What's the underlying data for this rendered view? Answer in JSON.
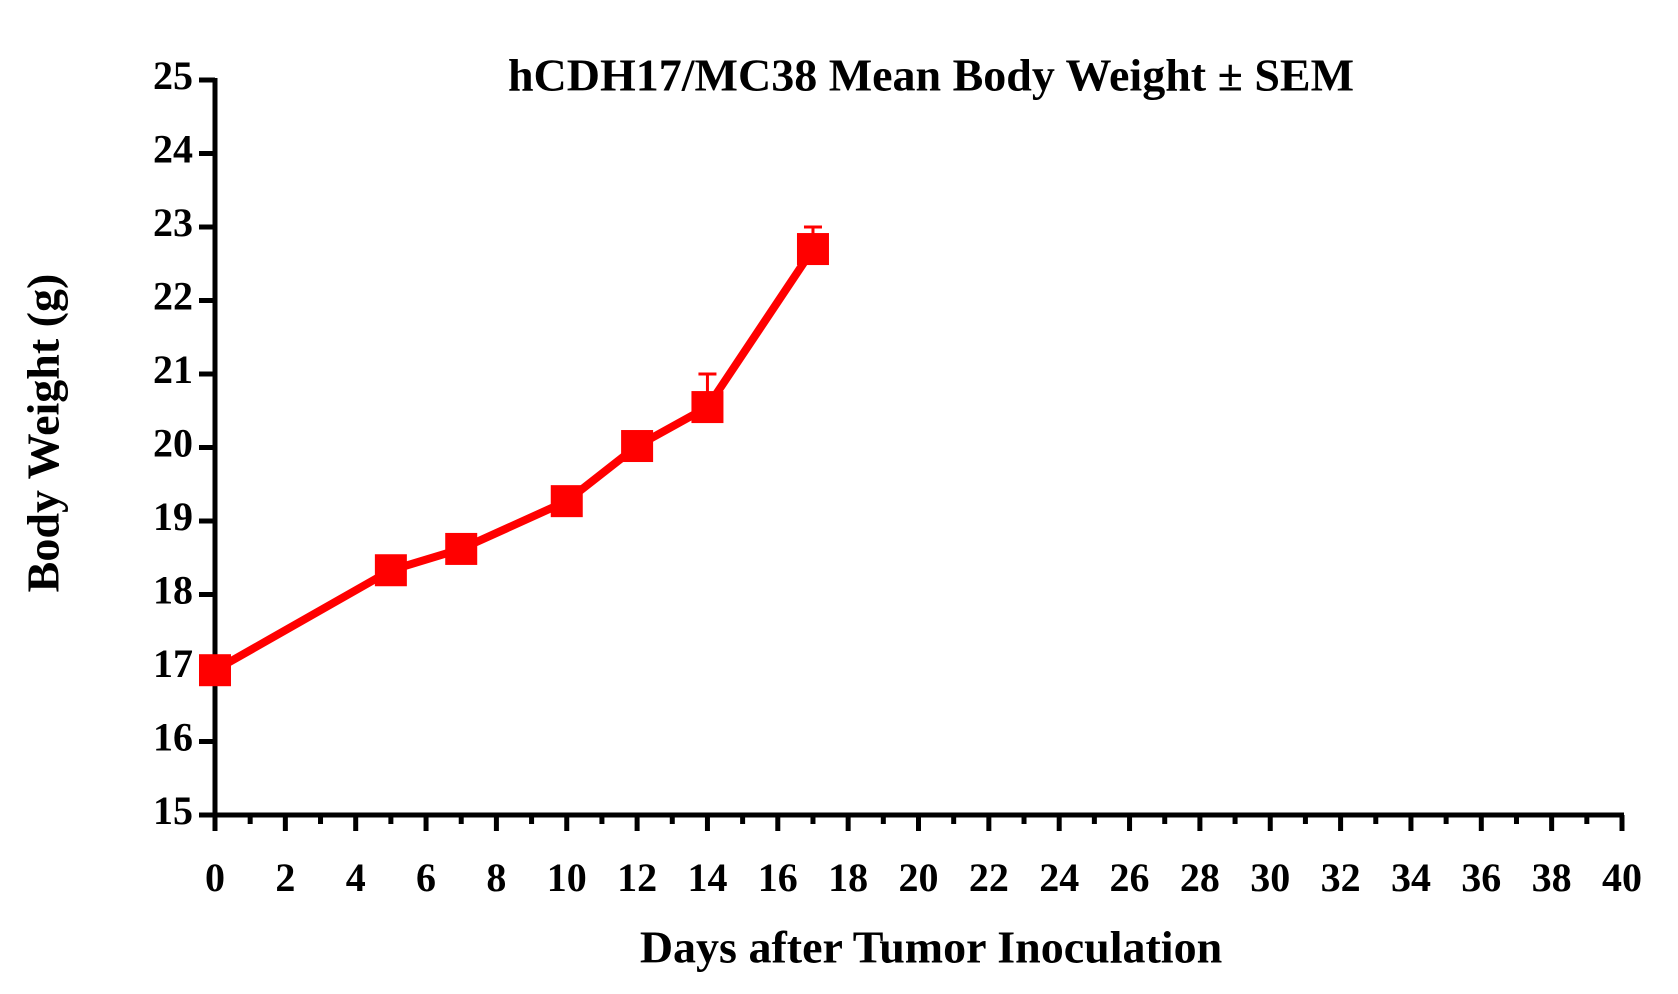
{
  "chart_data": {
    "type": "line",
    "title": "hCDH17/MC38 Mean Body Weight ± SEM",
    "x_label": "Days after Tumor Inoculation",
    "y_label": "Body Weight (g)",
    "x": [
      0,
      5,
      7,
      10,
      12,
      14,
      17
    ],
    "series": [
      {
        "color": "#ff0000",
        "values": [
          16.97,
          18.33,
          18.62,
          19.27,
          20.02,
          20.55,
          22.7
        ],
        "errors": [
          0.08,
          0.08,
          0.08,
          0.08,
          0.08,
          0.45,
          0.3
        ]
      }
    ],
    "xlim": [
      0,
      40
    ],
    "xticks": [
      0,
      2,
      4,
      6,
      8,
      10,
      12,
      14,
      16,
      18,
      20,
      22,
      24,
      26,
      28,
      30,
      32,
      34,
      36,
      38,
      40
    ],
    "ylim": [
      15,
      25
    ],
    "yticks": [
      15,
      16,
      17,
      18,
      19,
      20,
      21,
      22,
      23,
      24,
      25
    ]
  }
}
